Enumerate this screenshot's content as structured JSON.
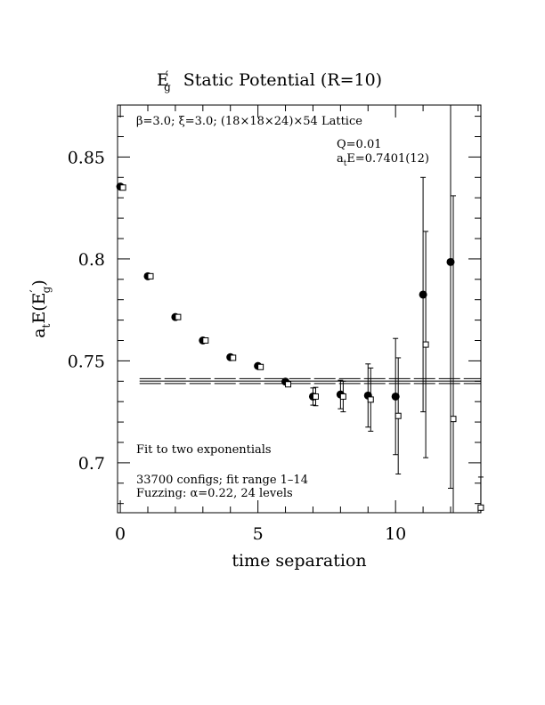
{
  "chart_data": {
    "type": "scatter",
    "title_main": "E",
    "title_sub": "g",
    "title_prime": "′",
    "title_rest": "Static Potential (R=10)",
    "xlabel": "time separation",
    "ylabel_main": "a",
    "ylabel_t": "t",
    "ylabel_mid": "E(E",
    "ylabel_prime": "′",
    "ylabel_g": "g",
    "ylabel_end": ")",
    "xlim": [
      -0.1,
      13.1
    ],
    "ylim": [
      0.6755,
      0.8755
    ],
    "x_ticks": [
      0,
      5,
      10
    ],
    "x_tick_labels": [
      "0",
      "5",
      "10"
    ],
    "y_ticks": [
      0.7,
      0.75,
      0.8,
      0.85
    ],
    "y_tick_labels": [
      "0.7",
      "0.75",
      "0.8",
      "0.85"
    ],
    "header_text": "β=3.0; ξ=3.0; (18×18×24)×54 Lattice",
    "fit_quality": "Q=0.01",
    "fit_energy_prefix": "a",
    "fit_energy_sub": "t",
    "fit_energy_rest": "E=0.7401(12)",
    "fit_note": "Fit to two exponentials",
    "config_note": "33700 configs; fit range 1–14",
    "fuzz_note": "Fuzzing: α=0.22, 24 levels",
    "fit_value": 0.7401,
    "fit_error": 0.0012,
    "series": [
      {
        "marker": "filled-circle",
        "points": [
          {
            "x": 0,
            "y": 0.8355,
            "err": 0.0004
          },
          {
            "x": 1,
            "y": 0.7915,
            "err": 0.0004
          },
          {
            "x": 2,
            "y": 0.7715,
            "err": 0.0005
          },
          {
            "x": 3,
            "y": 0.76,
            "err": 0.0006
          },
          {
            "x": 4,
            "y": 0.7518,
            "err": 0.0008
          },
          {
            "x": 5,
            "y": 0.7475,
            "err": 0.001
          },
          {
            "x": 6,
            "y": 0.7398,
            "err": 0.0015
          },
          {
            "x": 7,
            "y": 0.7325,
            "err": 0.0042
          },
          {
            "x": 8,
            "y": 0.7335,
            "err": 0.007
          },
          {
            "x": 9,
            "y": 0.733,
            "err": 0.0155
          },
          {
            "x": 10,
            "y": 0.7325,
            "err": 0.0285
          },
          {
            "x": 11,
            "y": 0.7825,
            "err": 0.0575
          },
          {
            "x": 12,
            "y": 0.7985,
            "err": 0.111
          }
        ]
      },
      {
        "marker": "open-square",
        "points": [
          {
            "x": 0,
            "y": 0.835,
            "err": 0.0004
          },
          {
            "x": 1,
            "y": 0.7915,
            "err": 0.0004
          },
          {
            "x": 2,
            "y": 0.7715,
            "err": 0.0005
          },
          {
            "x": 3,
            "y": 0.76,
            "err": 0.0006
          },
          {
            "x": 4,
            "y": 0.7515,
            "err": 0.0008
          },
          {
            "x": 5,
            "y": 0.747,
            "err": 0.001
          },
          {
            "x": 6,
            "y": 0.7385,
            "err": 0.0015
          },
          {
            "x": 7,
            "y": 0.7325,
            "err": 0.0045
          },
          {
            "x": 8,
            "y": 0.7325,
            "err": 0.0075
          },
          {
            "x": 9,
            "y": 0.731,
            "err": 0.0155
          },
          {
            "x": 10,
            "y": 0.723,
            "err": 0.0285
          },
          {
            "x": 11,
            "y": 0.758,
            "err": 0.0555
          },
          {
            "x": 12,
            "y": 0.7215,
            "err": 0.1095
          },
          {
            "x": 13,
            "y": 0.678,
            "err": 0.015
          }
        ]
      }
    ]
  }
}
